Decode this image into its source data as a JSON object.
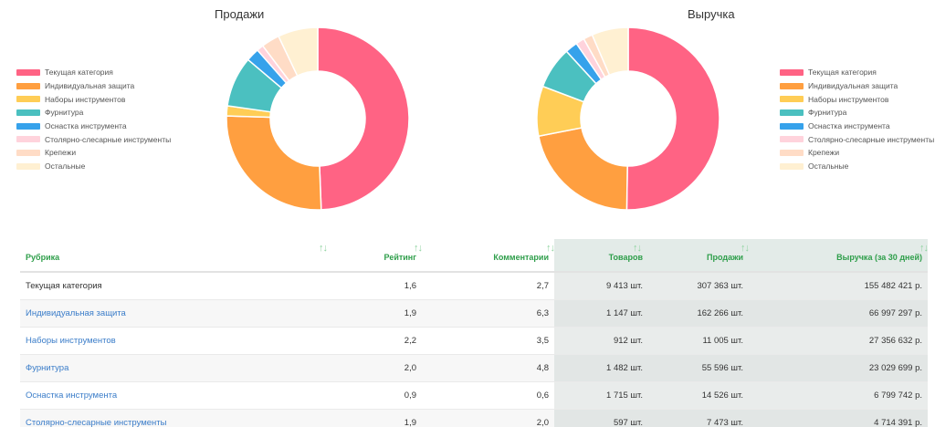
{
  "legend": [
    {
      "label": "Текущая категория",
      "color": "#ff6384"
    },
    {
      "label": "Индивидуальная защита",
      "color": "#ff9f40"
    },
    {
      "label": "Наборы инструментов",
      "color": "#ffcd56"
    },
    {
      "label": "Фурнитура",
      "color": "#4bc0c0"
    },
    {
      "label": "Оснастка инструмента",
      "color": "#36a2eb"
    },
    {
      "label": "Столярно-слесарные инструменты",
      "color": "#ffd3dc"
    },
    {
      "label": "Крепежи",
      "color": "#ffdcc6"
    },
    {
      "label": "Остальные",
      "color": "#fff0d2"
    }
  ],
  "chart_data": [
    {
      "type": "pie",
      "title": "Продажи",
      "categories": [
        "Текущая категория",
        "Индивидуальная защита",
        "Наборы инструментов",
        "Фурнитура",
        "Оснастка инструмента",
        "Столярно-слесарные инструменты",
        "Крепежи",
        "Остальные"
      ],
      "values": [
        307363,
        162266,
        11005,
        55596,
        14526,
        7473,
        20000,
        44000
      ],
      "legend_position": "left"
    },
    {
      "type": "pie",
      "title": "Выручка",
      "categories": [
        "Текущая категория",
        "Индивидуальная защита",
        "Наборы инструментов",
        "Фурнитура",
        "Оснастка инструмента",
        "Столярно-слесарные инструменты",
        "Крепежи",
        "Остальные"
      ],
      "values": [
        155482421,
        66997297,
        27356632,
        23029699,
        6799742,
        4714391,
        5000000,
        20000000
      ],
      "legend_position": "right"
    }
  ],
  "table": {
    "headers": {
      "rubric": "Рубрика",
      "rating": "Рейтинг",
      "comments": "Комментарии",
      "goods": "Товаров",
      "sales": "Продажи",
      "revenue": "Выручка (за 30 дней)"
    },
    "sort_glyph": "↑↓",
    "rows": [
      {
        "name": "Текущая категория",
        "rating": "1,6",
        "comments": "2,7",
        "goods": "9 413 шт.",
        "sales": "307 363 шт.",
        "revenue": "155 482 421 р."
      },
      {
        "name": "Индивидуальная защита",
        "rating": "1,9",
        "comments": "6,3",
        "goods": "1 147 шт.",
        "sales": "162 266 шт.",
        "revenue": "66 997 297 р."
      },
      {
        "name": "Наборы инструментов",
        "rating": "2,2",
        "comments": "3,5",
        "goods": "912 шт.",
        "sales": "11 005 шт.",
        "revenue": "27 356 632 р."
      },
      {
        "name": "Фурнитура",
        "rating": "2,0",
        "comments": "4,8",
        "goods": "1 482 шт.",
        "sales": "55 596 шт.",
        "revenue": "23 029 699 р."
      },
      {
        "name": "Оснастка инструмента",
        "rating": "0,9",
        "comments": "0,6",
        "goods": "1 715 шт.",
        "sales": "14 526 шт.",
        "revenue": "6 799 742 р."
      },
      {
        "name": "Столярно-слесарные инструменты",
        "rating": "1,9",
        "comments": "2,0",
        "goods": "597 шт.",
        "sales": "7 473 шт.",
        "revenue": "4 714 391 р."
      }
    ]
  }
}
